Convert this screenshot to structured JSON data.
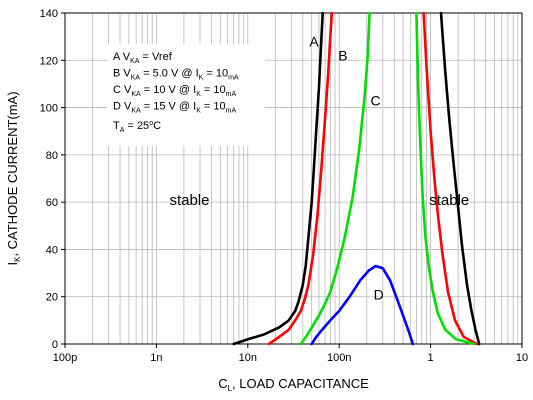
{
  "chart_data": {
    "type": "line",
    "title": "",
    "xlabel": {
      "prefix": "C",
      "sub": "L",
      "suffix": ", LOAD CAPACITANCE"
    },
    "ylabel": {
      "prefix": "I",
      "sub": "K",
      "suffix": ", CATHODE CURRENT(mA)"
    },
    "x_scale": "log",
    "x_unit": "F",
    "xlim": [
      1e-10,
      1e-05
    ],
    "ylim": [
      0,
      140
    ],
    "x_ticks": [
      {
        "value": 1e-10,
        "label": "100p"
      },
      {
        "value": 1e-09,
        "label": "1n"
      },
      {
        "value": 1e-08,
        "label": "10n"
      },
      {
        "value": 1e-07,
        "label": "100n"
      },
      {
        "value": 1e-06,
        "label": "1"
      },
      {
        "value": 1e-05,
        "label": "10"
      }
    ],
    "y_ticks": [
      0,
      20,
      40,
      60,
      80,
      100,
      120,
      140
    ],
    "grid": true,
    "legend": {
      "position": "top-left",
      "entries": [
        {
          "id": "A",
          "text": "A V",
          "sub": "KA",
          "rest": " = Vref"
        },
        {
          "id": "B",
          "text": "B V",
          "sub": "KA",
          "rest": " = 5.0 V @ I",
          "sub2": "K",
          "rest2": " = 10",
          "sub3": "mA"
        },
        {
          "id": "C",
          "text": "C V",
          "sub": "KA",
          "rest": " = 10 V @ I",
          "sub2": "K",
          "rest2": " = 10",
          "sub3": "mA"
        },
        {
          "id": "D",
          "text": "D V",
          "sub": "KA",
          "rest": " = 15 V @ I",
          "sub2": "K",
          "rest2": " = 10",
          "sub3": "mA"
        }
      ],
      "temp": {
        "text": "T",
        "sub": "A",
        "rest": " = 25",
        "sup": "o",
        "rest2": "C"
      }
    },
    "annotations": [
      {
        "text": "stable",
        "x": 2.3e-09,
        "y": 61
      },
      {
        "text": "stable",
        "x": 1.6e-06,
        "y": 61
      }
    ],
    "series": [
      {
        "name": "A",
        "color": "#000000",
        "label_at": [
          5.3e-08,
          128
        ],
        "left": [
          [
            7e-09,
            0
          ],
          [
            1e-08,
            2
          ],
          [
            1.5e-08,
            4
          ],
          [
            2.2e-08,
            7
          ],
          [
            2.8e-08,
            10
          ],
          [
            3.3e-08,
            14
          ],
          [
            3.6e-08,
            18
          ],
          [
            4e-08,
            25
          ],
          [
            4.3e-08,
            33
          ],
          [
            4.6e-08,
            45
          ],
          [
            5e-08,
            60
          ],
          [
            5.3e-08,
            75
          ],
          [
            5.6e-08,
            90
          ],
          [
            6e-08,
            108
          ],
          [
            6.3e-08,
            125
          ],
          [
            6.6e-08,
            140
          ]
        ],
        "right": [
          [
            1.3e-06,
            140
          ],
          [
            1.45e-06,
            115
          ],
          [
            1.6e-06,
            95
          ],
          [
            1.8e-06,
            75
          ],
          [
            2e-06,
            58
          ],
          [
            2.2e-06,
            42
          ],
          [
            2.5e-06,
            25
          ],
          [
            2.8e-06,
            14
          ],
          [
            3.1e-06,
            6
          ],
          [
            3.4e-06,
            0
          ]
        ]
      },
      {
        "name": "B",
        "color": "#ff0000",
        "label_at": [
          1.1e-07,
          122
        ],
        "left": [
          [
            1.7e-08,
            0
          ],
          [
            2.2e-08,
            3
          ],
          [
            2.8e-08,
            6
          ],
          [
            3.3e-08,
            10
          ],
          [
            3.8e-08,
            14
          ],
          [
            4.2e-08,
            19
          ],
          [
            4.6e-08,
            25
          ],
          [
            5.2e-08,
            38
          ],
          [
            5.8e-08,
            55
          ],
          [
            6.4e-08,
            75
          ],
          [
            7e-08,
            95
          ],
          [
            7.6e-08,
            115
          ],
          [
            8e-08,
            130
          ],
          [
            8.3e-08,
            140
          ]
        ],
        "right": [
          [
            8.4e-07,
            140
          ],
          [
            9e-07,
            118
          ],
          [
            1e-06,
            90
          ],
          [
            1.1e-06,
            70
          ],
          [
            1.2e-06,
            55
          ],
          [
            1.35e-06,
            38
          ],
          [
            1.55e-06,
            22
          ],
          [
            1.85e-06,
            10
          ],
          [
            2.3e-06,
            3
          ],
          [
            3.2e-06,
            0
          ]
        ]
      },
      {
        "name": "C",
        "color": "#00dd00",
        "label_at": [
          2.5e-07,
          103
        ],
        "left": [
          [
            3.8e-08,
            0
          ],
          [
            4.5e-08,
            4
          ],
          [
            5.2e-08,
            8
          ],
          [
            6e-08,
            12
          ],
          [
            7e-08,
            17
          ],
          [
            8e-08,
            22
          ],
          [
            9.5e-08,
            32
          ],
          [
            1.15e-07,
            45
          ],
          [
            1.4e-07,
            62
          ],
          [
            1.65e-07,
            82
          ],
          [
            1.9e-07,
            105
          ],
          [
            2.05e-07,
            122
          ],
          [
            2.15e-07,
            140
          ]
        ],
        "right": [
          [
            7e-07,
            140
          ],
          [
            7.3e-07,
            110
          ],
          [
            7.7e-07,
            85
          ],
          [
            8.2e-07,
            62
          ],
          [
            8.8e-07,
            45
          ],
          [
            9.6e-07,
            32
          ],
          [
            1.06e-06,
            22
          ],
          [
            1.2e-06,
            13
          ],
          [
            1.45e-06,
            6
          ],
          [
            1.9e-06,
            2
          ],
          [
            3e-06,
            0
          ]
        ]
      },
      {
        "name": "D",
        "color": "#0000ff",
        "label_at": [
          2.7e-07,
          21
        ],
        "left": [
          [
            5e-08,
            0
          ],
          [
            5.6e-08,
            3
          ],
          [
            6.5e-08,
            6
          ],
          [
            8e-08,
            10
          ],
          [
            1e-07,
            14
          ],
          [
            1.3e-07,
            20
          ],
          [
            1.7e-07,
            27
          ],
          [
            2.1e-07,
            31
          ],
          [
            2.5e-07,
            33
          ],
          [
            3e-07,
            32
          ],
          [
            3.6e-07,
            27
          ],
          [
            4.2e-07,
            20
          ],
          [
            5e-07,
            12
          ],
          [
            5.8e-07,
            5
          ],
          [
            6.4e-07,
            0
          ]
        ],
        "right": []
      }
    ]
  }
}
